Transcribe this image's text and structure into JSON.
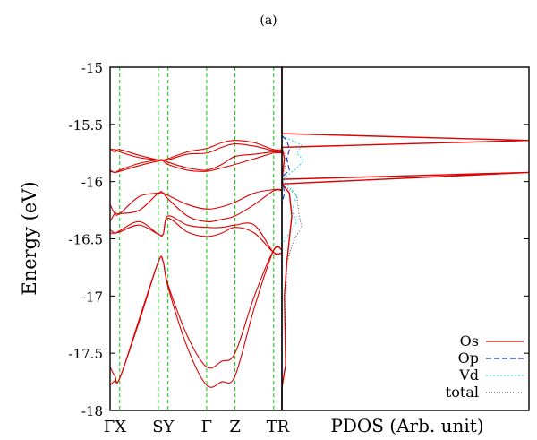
{
  "panel_label": "(a)",
  "colors": {
    "os": "#e00000",
    "op": "#1030c0",
    "vd": "#30e0e8",
    "total": "#505050",
    "kline": "#00cc00"
  },
  "chart_data": [
    {
      "type": "line",
      "title": "",
      "ylabel": "Energy (eV)",
      "ylim": [
        -18,
        -15
      ],
      "yticks": [
        -15,
        -15.5,
        -16,
        -16.5,
        -17,
        -17.5,
        -18
      ],
      "ytick_labels": [
        "-15",
        "-15.5",
        "-16",
        "-16.5",
        "-17",
        "-17.5",
        "-18"
      ],
      "grid": false,
      "kpath": {
        "range": [
          0,
          1
        ],
        "points": [
          {
            "label": "Γ",
            "pos": 0.0
          },
          {
            "label": "X",
            "pos": 0.056
          },
          {
            "label": "S",
            "pos": 0.281
          },
          {
            "label": "Y",
            "pos": 0.337
          },
          {
            "label": "Γ",
            "pos": 0.562
          },
          {
            "label": "Z",
            "pos": 0.727
          },
          {
            "label": "T",
            "pos": 0.952
          },
          {
            "label": "R",
            "pos": 1.0
          }
        ],
        "tick_label_text": [
          {
            "text": "ΓX",
            "pos": 0.028
          },
          {
            "text": "SY",
            "pos": 0.309
          },
          {
            "text": "Γ",
            "pos": 0.562
          },
          {
            "text": "Z",
            "pos": 0.727
          },
          {
            "text": "TR",
            "pos": 0.976
          }
        ]
      },
      "bands": [
        {
          "x": [
            0,
            0.028,
            0.056,
            0.17,
            0.281,
            0.309,
            0.337,
            0.45,
            0.562,
            0.65,
            0.727,
            0.84,
            0.952,
            1.0
          ],
          "y": [
            -15.71,
            -15.74,
            -15.72,
            -15.77,
            -15.81,
            -15.81,
            -15.8,
            -15.74,
            -15.71,
            -15.66,
            -15.64,
            -15.66,
            -15.72,
            -15.72
          ]
        },
        {
          "x": [
            0,
            0.028,
            0.056,
            0.17,
            0.281,
            0.309,
            0.337,
            0.45,
            0.562,
            0.65,
            0.727,
            0.84,
            0.952,
            1.0
          ],
          "y": [
            -15.72,
            -15.72,
            -15.74,
            -15.79,
            -15.81,
            -15.81,
            -15.81,
            -15.76,
            -15.75,
            -15.7,
            -15.67,
            -15.69,
            -15.73,
            -15.73
          ]
        },
        {
          "x": [
            0,
            0.028,
            0.056,
            0.17,
            0.281,
            0.309,
            0.337,
            0.45,
            0.562,
            0.65,
            0.727,
            0.84,
            0.952,
            1.0
          ],
          "y": [
            -15.9,
            -15.92,
            -15.9,
            -15.84,
            -15.81,
            -15.81,
            -15.83,
            -15.88,
            -15.9,
            -15.85,
            -15.78,
            -15.76,
            -15.74,
            -15.74
          ]
        },
        {
          "x": [
            0,
            0.028,
            0.056,
            0.17,
            0.281,
            0.309,
            0.337,
            0.45,
            0.562,
            0.65,
            0.727,
            0.84,
            0.952,
            1.0
          ],
          "y": [
            -15.91,
            -15.92,
            -15.91,
            -15.86,
            -15.82,
            -15.82,
            -15.85,
            -15.9,
            -15.91,
            -15.88,
            -15.85,
            -15.8,
            -15.75,
            -15.75
          ]
        },
        {
          "x": [
            0,
            0.028,
            0.056,
            0.17,
            0.281,
            0.309,
            0.337,
            0.45,
            0.562,
            0.65,
            0.727,
            0.84,
            0.952,
            1.0
          ],
          "y": [
            -16.2,
            -16.28,
            -16.28,
            -16.13,
            -16.1,
            -16.1,
            -16.12,
            -16.2,
            -16.24,
            -16.22,
            -16.18,
            -16.1,
            -16.07,
            -16.07
          ]
        },
        {
          "x": [
            0,
            0.028,
            0.056,
            0.17,
            0.281,
            0.309,
            0.337,
            0.45,
            0.562,
            0.65,
            0.727,
            0.84,
            0.952,
            1.0
          ],
          "y": [
            -16.35,
            -16.28,
            -16.28,
            -16.25,
            -16.1,
            -16.1,
            -16.15,
            -16.3,
            -16.35,
            -16.33,
            -16.3,
            -16.2,
            -16.08,
            -16.08
          ]
        },
        {
          "x": [
            0,
            0.028,
            0.056,
            0.17,
            0.281,
            0.309,
            0.337,
            0.45,
            0.562,
            0.65,
            0.727,
            0.84,
            0.952,
            1.0
          ],
          "y": [
            -16.42,
            -16.45,
            -16.43,
            -16.35,
            -16.46,
            -16.46,
            -16.3,
            -16.38,
            -16.4,
            -16.4,
            -16.38,
            -16.38,
            -16.62,
            -16.62
          ]
        },
        {
          "x": [
            0,
            0.028,
            0.056,
            0.17,
            0.281,
            0.309,
            0.337,
            0.45,
            0.562,
            0.65,
            0.727,
            0.84,
            0.952,
            1.0
          ],
          "y": [
            -16.45,
            -16.45,
            -16.44,
            -16.38,
            -16.46,
            -16.46,
            -16.32,
            -16.44,
            -16.48,
            -16.45,
            -16.4,
            -16.45,
            -16.62,
            -16.62
          ]
        },
        {
          "x": [
            0,
            0.028,
            0.056,
            0.17,
            0.281,
            0.309,
            0.337,
            0.45,
            0.562,
            0.65,
            0.727,
            0.84,
            0.952,
            1.0
          ],
          "y": [
            -17.62,
            -17.7,
            -17.72,
            -17.2,
            -16.7,
            -16.7,
            -16.9,
            -17.35,
            -17.62,
            -17.57,
            -17.5,
            -17.0,
            -16.6,
            -16.6
          ]
        },
        {
          "x": [
            0,
            0.028,
            0.056,
            0.17,
            0.281,
            0.309,
            0.337,
            0.45,
            0.562,
            0.65,
            0.727,
            0.84,
            0.952,
            1.0
          ],
          "y": [
            -17.78,
            -17.74,
            -17.72,
            -17.22,
            -16.7,
            -16.7,
            -16.92,
            -17.45,
            -17.78,
            -17.75,
            -17.7,
            -17.1,
            -16.6,
            -16.6
          ]
        }
      ]
    },
    {
      "type": "line",
      "xlabel": "PDOS (Arb. unit)",
      "ylim": [
        -18,
        -15
      ],
      "legend_position": "bottom-right",
      "series": [
        {
          "name": "Os",
          "color_key": "os",
          "dash": "solid",
          "points": [
            [
              0.0,
              -15.0
            ],
            [
              0.0,
              -15.58
            ],
            [
              1.0,
              -15.64
            ],
            [
              0.0,
              -15.7
            ],
            [
              0.01,
              -15.8
            ],
            [
              0.0,
              -15.98
            ],
            [
              1.0,
              -15.92
            ],
            [
              0.0,
              -16.02
            ],
            [
              0.03,
              -16.1
            ],
            [
              0.04,
              -16.3
            ],
            [
              0.03,
              -16.5
            ],
            [
              0.02,
              -16.7
            ],
            [
              0.01,
              -17.0
            ],
            [
              0.015,
              -17.6
            ],
            [
              0.0,
              -17.8
            ],
            [
              0.0,
              -18.0
            ]
          ]
        },
        {
          "name": "Op",
          "color_key": "op",
          "dash": "6,3",
          "points": [
            [
              0.0,
              -15.6
            ],
            [
              0.02,
              -15.64
            ],
            [
              0.03,
              -15.72
            ],
            [
              0.02,
              -15.8
            ],
            [
              0.03,
              -15.9
            ],
            [
              0.0,
              -15.96
            ],
            [
              0.01,
              -16.1
            ],
            [
              0.0,
              -16.2
            ],
            [
              0.0,
              -18.0
            ]
          ]
        },
        {
          "name": "Vd",
          "color_key": "vd",
          "dash": "2,2",
          "points": [
            [
              0.0,
              -15.6
            ],
            [
              0.08,
              -15.68
            ],
            [
              0.06,
              -15.75
            ],
            [
              0.09,
              -15.82
            ],
            [
              0.05,
              -15.9
            ],
            [
              0.0,
              -15.98
            ],
            [
              0.06,
              -16.12
            ],
            [
              0.04,
              -16.25
            ],
            [
              0.06,
              -16.35
            ],
            [
              0.03,
              -16.45
            ],
            [
              0.0,
              -16.55
            ],
            [
              0.0,
              -18.0
            ]
          ]
        },
        {
          "name": "total",
          "color_key": "total",
          "dash": "1,2",
          "points": [
            [
              0.0,
              -15.0
            ],
            [
              0.0,
              -15.58
            ],
            [
              1.0,
              -15.64
            ],
            [
              0.0,
              -15.7
            ],
            [
              0.02,
              -15.8
            ],
            [
              0.0,
              -15.98
            ],
            [
              1.0,
              -15.92
            ],
            [
              0.0,
              -16.02
            ],
            [
              0.06,
              -16.12
            ],
            [
              0.07,
              -16.3
            ],
            [
              0.08,
              -16.4
            ],
            [
              0.05,
              -16.5
            ],
            [
              0.02,
              -16.7
            ],
            [
              0.015,
              -17.2
            ],
            [
              0.015,
              -17.6
            ],
            [
              0.0,
              -17.8
            ],
            [
              0.0,
              -18.0
            ]
          ]
        }
      ]
    }
  ]
}
